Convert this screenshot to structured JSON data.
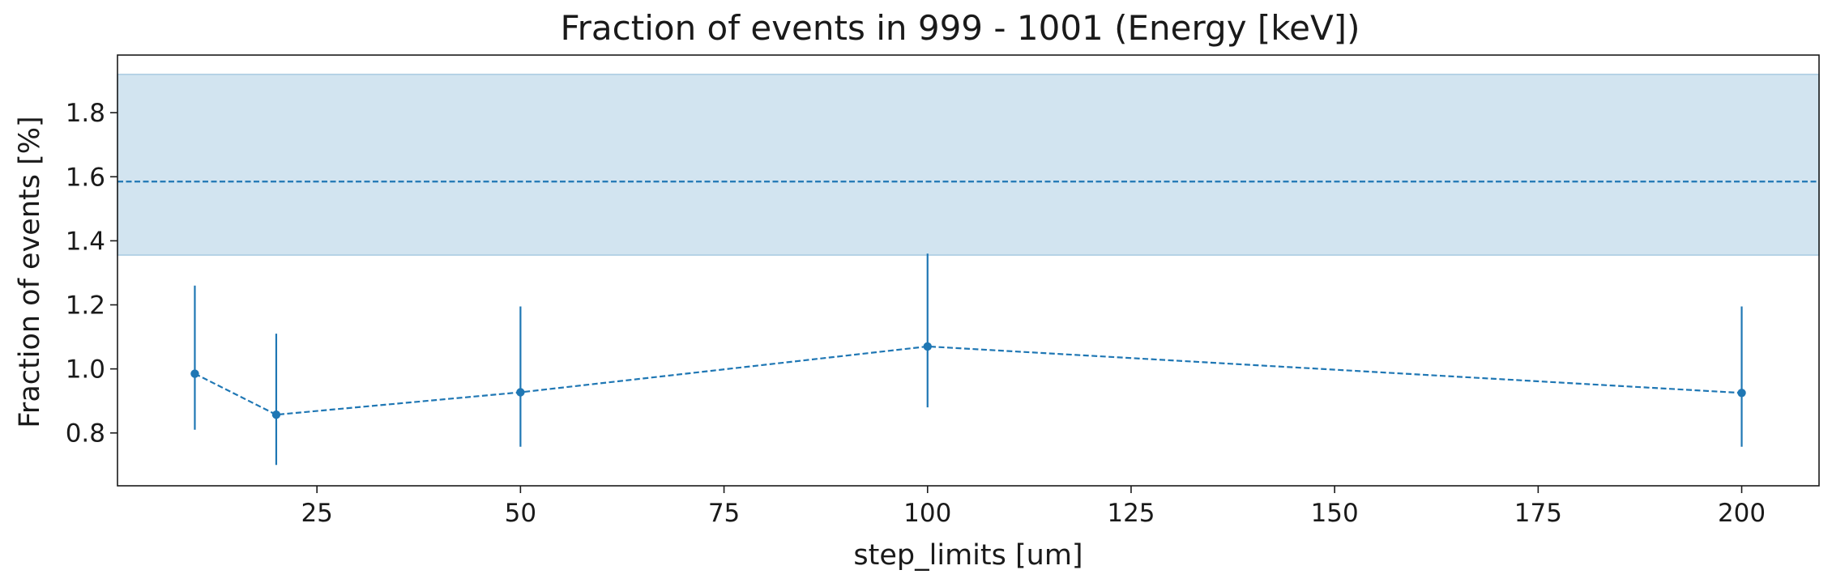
{
  "chart_data": {
    "type": "line",
    "title": "Fraction of events in 999 - 1001 (Energy [keV])",
    "xlabel": "step_limits [um]",
    "ylabel": "Fraction of events [%]",
    "xlim": [
      0.5,
      209.5
    ],
    "ylim": [
      0.635,
      1.98
    ],
    "xticks": [
      25,
      50,
      75,
      100,
      125,
      150,
      175,
      200
    ],
    "xtick_labels": [
      "25",
      "50",
      "75",
      "100",
      "125",
      "150",
      "175",
      "200"
    ],
    "yticks": [
      0.8,
      1.0,
      1.2,
      1.4,
      1.6,
      1.8
    ],
    "ytick_labels": [
      "0.8",
      "1.0",
      "1.2",
      "1.4",
      "1.6",
      "1.8"
    ],
    "grid": false,
    "colors": {
      "series": "#1f77b4",
      "band": "#1f77b4",
      "band_opacity": 0.2
    },
    "reference": {
      "value": 1.585,
      "band_low": 1.355,
      "band_high": 1.92,
      "line_style": "dashed"
    },
    "series": [
      {
        "x": [
          10,
          20,
          50,
          100,
          200
        ],
        "y": [
          0.985,
          0.857,
          0.927,
          1.07,
          0.925
        ],
        "yerr_low": [
          0.81,
          0.7,
          0.757,
          0.88,
          0.757
        ],
        "yerr_high": [
          1.26,
          1.11,
          1.195,
          1.36,
          1.195
        ],
        "line_style": "dashed",
        "marker": "circle"
      }
    ]
  }
}
